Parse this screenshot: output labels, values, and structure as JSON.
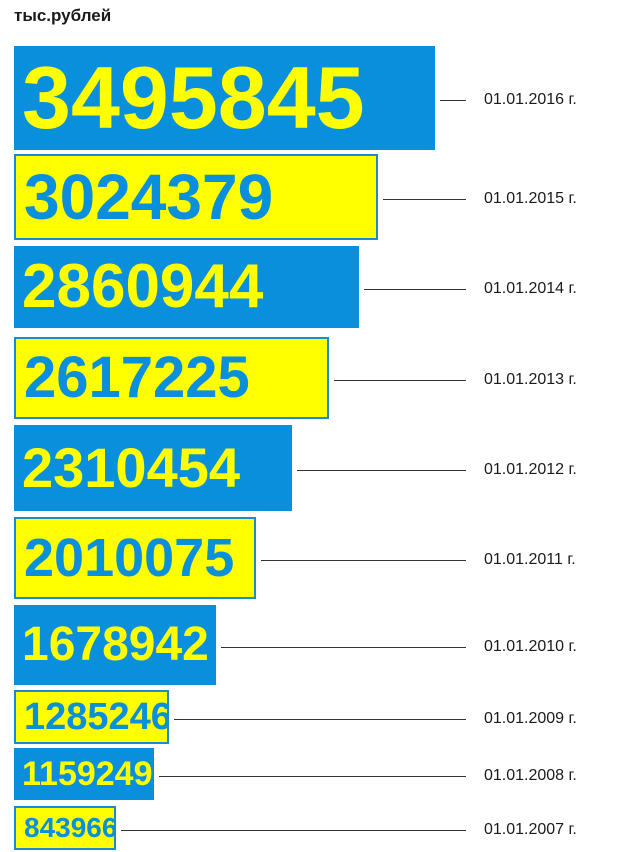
{
  "unit_label": "тыс.рублей",
  "chart_data": {
    "type": "bar",
    "orientation": "horizontal",
    "ylabel": "тыс.рублей",
    "categories": [
      "01.01.2016 г.",
      "01.01.2015 г.",
      "01.01.2014 г.",
      "01.01.2013 г.",
      "01.01.2012 г.",
      "01.01.2011 г.",
      "01.01.2010 г.",
      "01.01.2009 г.",
      "01.01.2008 г.",
      "01.01.2007 г."
    ],
    "values": [
      3495845,
      3024379,
      2860944,
      2617225,
      2310454,
      2010075,
      1678942,
      1285246,
      1159249,
      843966
    ],
    "labels": [
      "3495845",
      "3024379",
      "2860944",
      "2617225",
      "2310454",
      "2010075",
      "1678942",
      "1285246",
      "1159249",
      "843966"
    ],
    "fill_pattern": [
      "blue",
      "yellow",
      "blue",
      "yellow",
      "blue",
      "yellow",
      "blue",
      "yellow",
      "blue",
      "yellow"
    ],
    "colors": {
      "blue": "#0a8fdc",
      "yellow": "#ffff00"
    }
  }
}
